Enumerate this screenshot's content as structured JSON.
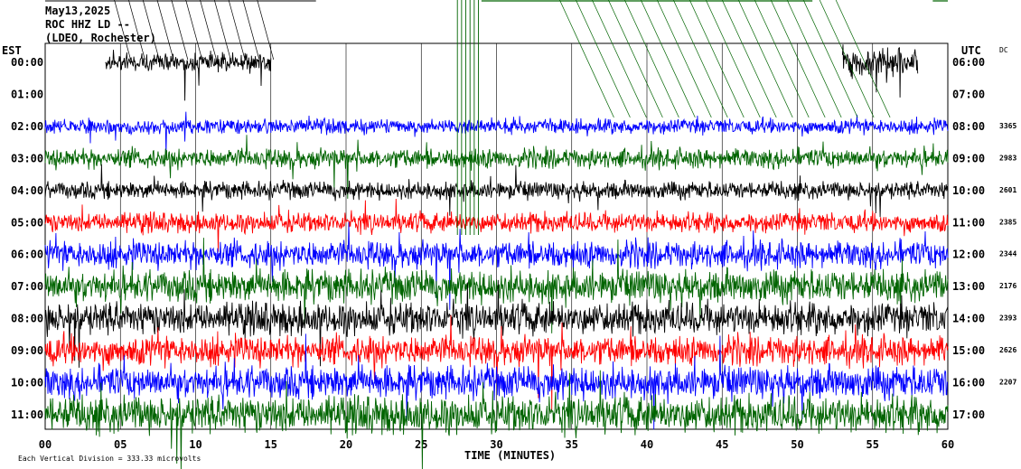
{
  "header": {
    "date": "May13,2025",
    "station": "ROC HHZ LD --",
    "location": "(LDEO, Rochester)"
  },
  "chart_data": {
    "type": "line",
    "title": "May13,2025",
    "subtitle": "ROC HHZ LD -- (LDEO, Rochester)",
    "left_axis_label": "EST",
    "right_axis_label": "UTC",
    "dc_label": "DC",
    "xlabel": "TIME (MINUTES)",
    "xlim": [
      0,
      60
    ],
    "x_ticks": [
      "00",
      "05",
      "10",
      "15",
      "20",
      "25",
      "30",
      "35",
      "40",
      "45",
      "50",
      "55",
      "60"
    ],
    "footer": "Each Vertical Division =  333.33 microvolts",
    "grid": true,
    "rows": [
      {
        "est": "00:00",
        "utc": "06:00",
        "dc": "",
        "color": "#000000",
        "amp": 0
      },
      {
        "est": "01:00",
        "utc": "07:00",
        "dc": "",
        "color": "#0000ff",
        "amp": 0
      },
      {
        "est": "02:00",
        "utc": "08:00",
        "dc": "3365",
        "color": "#0000ff",
        "amp": 12
      },
      {
        "est": "03:00",
        "utc": "09:00",
        "dc": "2983",
        "color": "#006400",
        "amp": 16
      },
      {
        "est": "04:00",
        "utc": "10:00",
        "dc": "2601",
        "color": "#000000",
        "amp": 14
      },
      {
        "est": "05:00",
        "utc": "11:00",
        "dc": "2385",
        "color": "#ff0000",
        "amp": 16
      },
      {
        "est": "06:00",
        "utc": "12:00",
        "dc": "2344",
        "color": "#0000ff",
        "amp": 22
      },
      {
        "est": "07:00",
        "utc": "13:00",
        "dc": "2176",
        "color": "#006400",
        "amp": 26
      },
      {
        "est": "08:00",
        "utc": "14:00",
        "dc": "2393",
        "color": "#000000",
        "amp": 26
      },
      {
        "est": "09:00",
        "utc": "15:00",
        "dc": "2626",
        "color": "#ff0000",
        "amp": 24
      },
      {
        "est": "10:00",
        "utc": "16:00",
        "dc": "2207",
        "color": "#0000ff",
        "amp": 26
      },
      {
        "est": "11:00",
        "utc": "17:00",
        "dc": "",
        "color": "#006400",
        "amp": 30
      }
    ]
  }
}
